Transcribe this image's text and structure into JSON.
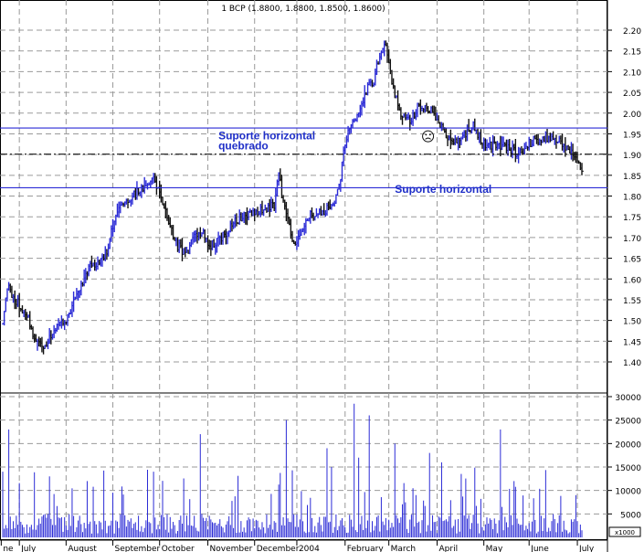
{
  "chart_data": {
    "type": "bar",
    "title": "1 BCP (1.8800, 1.8800, 1.8500, 1.8600)",
    "price_axis": {
      "ylim": [
        1.38,
        2.23
      ],
      "ticks": [
        "2.20",
        "2.15",
        "2.10",
        "2.05",
        "2.00",
        "1.95",
        "1.90",
        "1.85",
        "1.80",
        "1.75",
        "1.70",
        "1.65",
        "1.60",
        "1.55",
        "1.50",
        "1.45",
        "1.40"
      ]
    },
    "volume_axis": {
      "ylim": [
        0,
        31000
      ],
      "ticks": [
        "30000",
        "25000",
        "20000",
        "15000",
        "10000",
        "5000"
      ],
      "unit_label": "x1000"
    },
    "x_labels": [
      "ne",
      "July",
      "August",
      "September",
      "October",
      "November",
      "December",
      "2004",
      "February",
      "March",
      "April",
      "May",
      "June",
      "July"
    ],
    "x_label_day": [
      -1,
      11,
      42,
      73,
      104,
      136,
      167,
      195,
      227,
      256,
      288,
      319,
      349,
      381
    ],
    "days_total": 392,
    "key_points": [
      [
        0,
        1.5
      ],
      [
        3,
        1.58
      ],
      [
        8,
        1.55
      ],
      [
        15,
        1.52
      ],
      [
        22,
        1.45
      ],
      [
        26,
        1.43
      ],
      [
        33,
        1.47
      ],
      [
        42,
        1.5
      ],
      [
        50,
        1.57
      ],
      [
        57,
        1.63
      ],
      [
        64,
        1.64
      ],
      [
        70,
        1.67
      ],
      [
        74,
        1.75
      ],
      [
        80,
        1.78
      ],
      [
        86,
        1.8
      ],
      [
        94,
        1.82
      ],
      [
        100,
        1.84
      ],
      [
        105,
        1.8
      ],
      [
        110,
        1.73
      ],
      [
        116,
        1.68
      ],
      [
        122,
        1.66
      ],
      [
        126,
        1.7
      ],
      [
        132,
        1.71
      ],
      [
        138,
        1.68
      ],
      [
        145,
        1.7
      ],
      [
        152,
        1.73
      ],
      [
        158,
        1.75
      ],
      [
        166,
        1.76
      ],
      [
        174,
        1.77
      ],
      [
        180,
        1.78
      ],
      [
        183,
        1.86
      ],
      [
        186,
        1.78
      ],
      [
        189,
        1.74
      ],
      [
        193,
        1.69
      ],
      [
        197,
        1.7
      ],
      [
        202,
        1.75
      ],
      [
        212,
        1.76
      ],
      [
        220,
        1.79
      ],
      [
        224,
        1.85
      ],
      [
        227,
        1.93
      ],
      [
        232,
        1.98
      ],
      [
        238,
        2.02
      ],
      [
        242,
        2.06
      ],
      [
        246,
        2.08
      ],
      [
        250,
        2.14
      ],
      [
        254,
        2.17
      ],
      [
        256,
        2.12
      ],
      [
        260,
        2.04
      ],
      [
        264,
        2.0
      ],
      [
        270,
        1.98
      ],
      [
        276,
        2.02
      ],
      [
        283,
        2.01
      ],
      [
        288,
        1.98
      ],
      [
        294,
        1.95
      ],
      [
        300,
        1.93
      ],
      [
        306,
        1.95
      ],
      [
        312,
        1.97
      ],
      [
        318,
        1.93
      ],
      [
        326,
        1.92
      ],
      [
        334,
        1.92
      ],
      [
        342,
        1.9
      ],
      [
        350,
        1.93
      ],
      [
        358,
        1.94
      ],
      [
        366,
        1.94
      ],
      [
        372,
        1.92
      ],
      [
        377,
        1.9
      ],
      [
        381,
        1.88
      ],
      [
        384,
        1.86
      ]
    ],
    "horizontal_lines": [
      {
        "value": 1.964,
        "style": "solid"
      },
      {
        "value": 1.901,
        "style": "dashdot"
      },
      {
        "value": 1.82,
        "style": "solid"
      }
    ],
    "annotations": [
      {
        "text": "Suporte horizontal",
        "day": 143,
        "y": 1.937
      },
      {
        "text": "quebrado",
        "day": 143,
        "y": 1.912
      },
      {
        "text": "Suporte horizontal",
        "day": 260,
        "y": 1.808
      }
    ],
    "frown_symbol": {
      "day": 282,
      "y": 1.944
    },
    "colors": {
      "up": "#2b2bd6",
      "down": "#111111",
      "lines": "#2b2bd6",
      "grid": "#9a9a9a",
      "text": "#000000",
      "annotation": "#1f2fc8"
    }
  }
}
